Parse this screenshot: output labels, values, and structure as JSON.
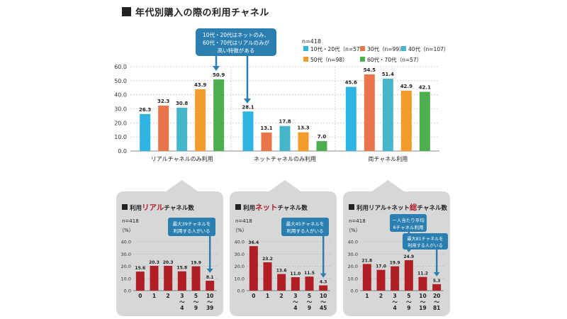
{
  "title": "年代別購入の際の利用チャネル",
  "main_chart": {
    "n_label": "n=418",
    "note": [
      "10代・20代はネットのみ、",
      "60代・70代はリアルのみが",
      "高い特徴がある"
    ],
    "series_colors": [
      "#2fb3e0",
      "#e9754a",
      "#45b5c9",
      "#f39c2b",
      "#4cae4f"
    ]
  },
  "chart_data": [
    {
      "type": "bar",
      "categories": [
        "リアルチャネルのみ利用",
        "ネットチャネルのみ利用",
        "両チャネル利用"
      ],
      "series": [
        {
          "name": "10代・20代（n=57）",
          "values": [
            26.3,
            28.1,
            45.6
          ]
        },
        {
          "name": "30代（n=99）",
          "values": [
            32.3,
            13.1,
            54.5
          ]
        },
        {
          "name": "40代（n=107）",
          "values": [
            30.8,
            17.8,
            51.4
          ]
        },
        {
          "name": "50代（n=98）",
          "values": [
            43.9,
            13.3,
            42.9
          ]
        },
        {
          "name": "60代・70代（n=57）",
          "values": [
            50.9,
            7.0,
            42.1
          ]
        }
      ],
      "ylim": [
        0,
        60
      ],
      "yticks": [
        "0.0",
        "10.0",
        "20.0",
        "30.0",
        "40.0",
        "50.0",
        "60.0"
      ],
      "grid": true,
      "legend": "top-right"
    },
    {
      "type": "bar",
      "title_parts": [
        "利用",
        "リアル",
        "チャネル数"
      ],
      "n_label": "n=418",
      "unit": "（%）",
      "note": [
        "最大39チャネルを",
        "利用する人がいる"
      ],
      "categories": [
        "0",
        "1",
        "2",
        "3〜4",
        "5〜9",
        "10〜39"
      ],
      "category_lines": [
        [
          "0"
        ],
        [
          "1"
        ],
        [
          "2"
        ],
        [
          "3",
          "〜",
          "4"
        ],
        [
          "5",
          "〜",
          "9"
        ],
        [
          "10",
          "〜",
          "39"
        ]
      ],
      "values": [
        15.6,
        20.3,
        20.3,
        15.8,
        19.9,
        8.1
      ],
      "ylim": [
        0,
        40
      ],
      "yticks": [
        "0.0",
        "10.0",
        "20.0",
        "30.0",
        "40.0"
      ]
    },
    {
      "type": "bar",
      "title_parts": [
        "利用",
        "ネット",
        "チャネル数"
      ],
      "n_label": "n=418",
      "unit": "（%）",
      "note": [
        "最大45チャネルを",
        "利用する人がいる"
      ],
      "categories": [
        "0",
        "1",
        "2",
        "3〜4",
        "5〜9",
        "10〜45"
      ],
      "category_lines": [
        [
          "0"
        ],
        [
          "1"
        ],
        [
          "2"
        ],
        [
          "3",
          "〜",
          "4"
        ],
        [
          "5",
          "〜",
          "9"
        ],
        [
          "10",
          "〜",
          "45"
        ]
      ],
      "values": [
        36.4,
        23.2,
        13.6,
        11.0,
        11.5,
        4.3
      ],
      "ylim": [
        0,
        40
      ],
      "yticks": [
        "0.0",
        "10.0",
        "20.0",
        "30.0",
        "40.0"
      ]
    },
    {
      "type": "bar",
      "title_parts": [
        "利用リアル+ネット",
        "総",
        "チャネル数"
      ],
      "n_label": "n=418",
      "unit": "（%）",
      "note": [
        "一人当たり平均",
        "6チャネル利用"
      ],
      "note2": [
        "最大81チャネルを",
        "利用する人がいる"
      ],
      "categories": [
        "1",
        "2",
        "3〜4",
        "5〜9",
        "10〜19",
        "20〜81"
      ],
      "category_lines": [
        [
          "1"
        ],
        [
          "2"
        ],
        [
          "3",
          "〜",
          "4"
        ],
        [
          "5",
          "〜",
          "9"
        ],
        [
          "10",
          "〜",
          "19"
        ],
        [
          "20",
          "〜",
          "81"
        ]
      ],
      "values": [
        21.8,
        17.0,
        19.9,
        24.9,
        11.2,
        5.3
      ],
      "ylim": [
        0,
        40
      ],
      "yticks": [
        "0.0",
        "10.0",
        "20.0",
        "30.0",
        "40.0"
      ]
    }
  ]
}
